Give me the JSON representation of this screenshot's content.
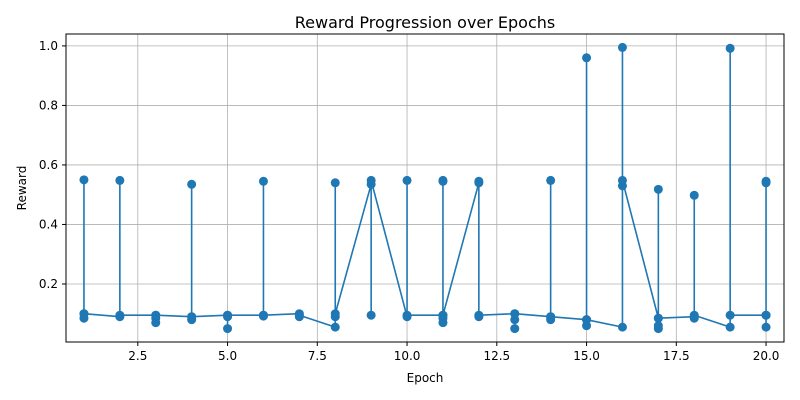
{
  "chart_data": {
    "type": "line",
    "title": "Reward Progression over Epochs",
    "xlabel": "Epoch",
    "ylabel": "Reward",
    "xlim": [
      0.5,
      20.5
    ],
    "ylim": [
      0.005,
      1.04
    ],
    "xticks": [
      2.5,
      5.0,
      7.5,
      10.0,
      12.5,
      15.0,
      17.5,
      20.0
    ],
    "xtick_labels": [
      "2.5",
      "5.0",
      "7.5",
      "10.0",
      "12.5",
      "15.0",
      "17.5",
      "20.0"
    ],
    "yticks": [
      0.2,
      0.4,
      0.6,
      0.8,
      1.0
    ],
    "ytick_labels": [
      "0.2",
      "0.4",
      "0.6",
      "0.8",
      "1.0"
    ],
    "grid": true,
    "color": "#1f77b4",
    "series": [
      {
        "points": [
          [
            1,
            0.1
          ],
          [
            1,
            0.55
          ],
          [
            1,
            0.085
          ],
          [
            1,
            0.1
          ],
          [
            2,
            0.09
          ],
          [
            2,
            0.548
          ],
          [
            2,
            0.095
          ],
          [
            3,
            0.095
          ],
          [
            3,
            0.07
          ],
          [
            3,
            0.085
          ],
          [
            3,
            0.095
          ],
          [
            4,
            0.09
          ],
          [
            4,
            0.535
          ],
          [
            4,
            0.08
          ],
          [
            4,
            0.09
          ],
          [
            5,
            0.095
          ],
          [
            5,
            0.05
          ],
          [
            5,
            0.09
          ],
          [
            5,
            0.095
          ],
          [
            6,
            0.095
          ],
          [
            6,
            0.545
          ],
          [
            6,
            0.092
          ],
          [
            6,
            0.095
          ],
          [
            7,
            0.1
          ],
          [
            7,
            0.09
          ],
          [
            7,
            0.095
          ],
          [
            8,
            0.055
          ],
          [
            8,
            0.54
          ],
          [
            8,
            0.09
          ],
          [
            8,
            0.1
          ],
          [
            9,
            0.535
          ],
          [
            9,
            0.095
          ],
          [
            9,
            0.548
          ],
          [
            10,
            0.09
          ],
          [
            10,
            0.548
          ],
          [
            10,
            0.095
          ],
          [
            11,
            0.095
          ],
          [
            11,
            0.548
          ],
          [
            11,
            0.07
          ],
          [
            11,
            0.085
          ],
          [
            11,
            0.545
          ],
          [
            11,
            0.095
          ],
          [
            12,
            0.54
          ],
          [
            12,
            0.09
          ],
          [
            12,
            0.545
          ],
          [
            12,
            0.095
          ],
          [
            13,
            0.1
          ],
          [
            13,
            0.05
          ],
          [
            13,
            0.08
          ],
          [
            13,
            0.1
          ],
          [
            14,
            0.09
          ],
          [
            14,
            0.548
          ],
          [
            14,
            0.08
          ],
          [
            14,
            0.09
          ],
          [
            15,
            0.08
          ],
          [
            15,
            0.96
          ],
          [
            15,
            0.06
          ],
          [
            15,
            0.08
          ],
          [
            16,
            0.055
          ],
          [
            16,
            0.995
          ],
          [
            16,
            0.53
          ],
          [
            16,
            0.548
          ],
          [
            17,
            0.085
          ],
          [
            17,
            0.518
          ],
          [
            17,
            0.05
          ],
          [
            17,
            0.06
          ],
          [
            17,
            0.085
          ],
          [
            18,
            0.09
          ],
          [
            18,
            0.498
          ],
          [
            18,
            0.085
          ],
          [
            18,
            0.095
          ],
          [
            19,
            0.055
          ],
          [
            19,
            0.992
          ],
          [
            19,
            0.095
          ],
          [
            20,
            0.095
          ],
          [
            20,
            0.545
          ],
          [
            20,
            0.055
          ],
          [
            20,
            0.54
          ],
          [
            20,
            0.095
          ]
        ]
      }
    ]
  }
}
